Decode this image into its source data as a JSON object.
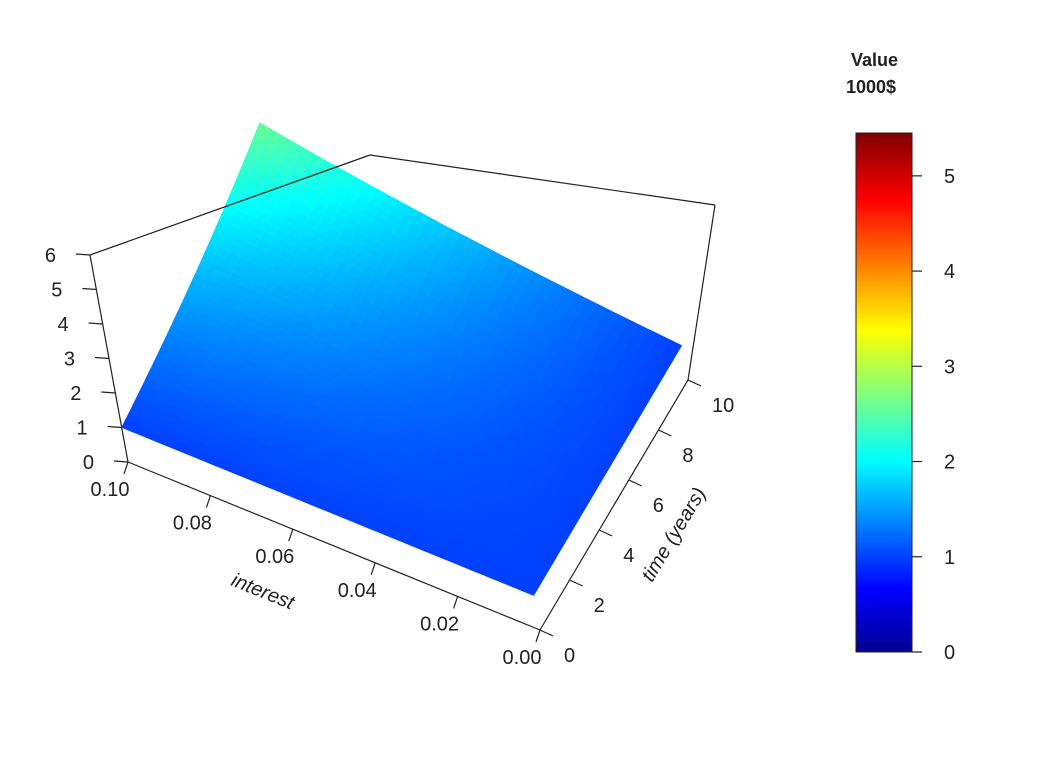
{
  "chart_data": {
    "type": "surface3d",
    "title": "",
    "xlabel": "interest",
    "ylabel": "time (years)",
    "zlabel": "",
    "function": "1000 * (1 + interest)^time",
    "x": [
      0.0,
      0.01,
      0.02,
      0.03,
      0.04,
      0.05,
      0.06,
      0.07,
      0.08,
      0.09,
      0.1
    ],
    "y": [
      0,
      1,
      2,
      3,
      4,
      5,
      6,
      7,
      8,
      9,
      10
    ],
    "z_note_units": "Value 1000$",
    "xlim": [
      0,
      0.1
    ],
    "ylim": [
      0,
      10
    ],
    "zlim": [
      0,
      6
    ],
    "x_ticks": [
      "0.00",
      "0.02",
      "0.04",
      "0.06",
      "0.08",
      "0.10"
    ],
    "y_ticks": [
      "0",
      "2",
      "4",
      "6",
      "8",
      "10"
    ],
    "z_ticks": [
      "0",
      "1",
      "2",
      "3",
      "4",
      "5",
      "6"
    ],
    "colorbar": {
      "title_line1": "Value",
      "title_line2": "1000$",
      "range": [
        0,
        5.45
      ],
      "ticks": [
        "0",
        "1",
        "2",
        "3",
        "4",
        "5"
      ],
      "colormap": [
        "#00008F",
        "#0000FF",
        "#00FFFF",
        "#FFFF00",
        "#FF0000",
        "#800000"
      ]
    },
    "grid": false,
    "legend_position": "right"
  }
}
